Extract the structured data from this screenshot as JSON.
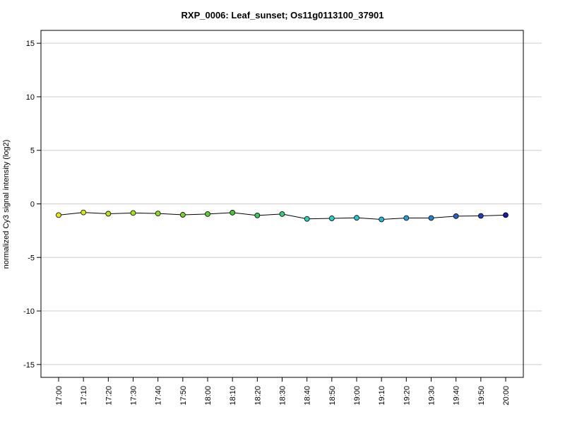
{
  "chart_data": {
    "type": "line",
    "title": "RXP_0006: Leaf_sunset; Os11g0113100_37901",
    "xlabel": "",
    "ylabel": "normalized Cy3 signal intensity (log2)",
    "ylim": [
      -16.2,
      16.2
    ],
    "yticks": [
      -15,
      -10,
      -5,
      0,
      5,
      10,
      15
    ],
    "grid": true,
    "legend": "none",
    "categories": [
      "17:00",
      "17:10",
      "17:20",
      "17:30",
      "17:40",
      "17:50",
      "18:00",
      "18:10",
      "18:20",
      "18:30",
      "18:40",
      "18:50",
      "19:00",
      "19:10",
      "19:20",
      "19:30",
      "19:40",
      "19:50",
      "20:00"
    ],
    "series": [
      {
        "values": [
          -1.05,
          -0.8,
          -0.92,
          -0.85,
          -0.9,
          -1.02,
          -0.95,
          -0.82,
          -1.08,
          -0.95,
          -1.4,
          -1.35,
          -1.3,
          -1.45,
          -1.32,
          -1.32,
          -1.15,
          -1.12,
          -1.05
        ],
        "colors": [
          "#e6e619",
          "#d4e619",
          "#b8e61c",
          "#a3e01e",
          "#8ed922",
          "#78d22c",
          "#5ecb30",
          "#48c63a",
          "#3ac75a",
          "#35c97a",
          "#2fd1b0",
          "#2ccfc4",
          "#2ac7d2",
          "#28b8d6",
          "#2a9ed4",
          "#2a80cc",
          "#2563c0",
          "#1f3fb2",
          "#1a1aa6"
        ]
      }
    ]
  }
}
